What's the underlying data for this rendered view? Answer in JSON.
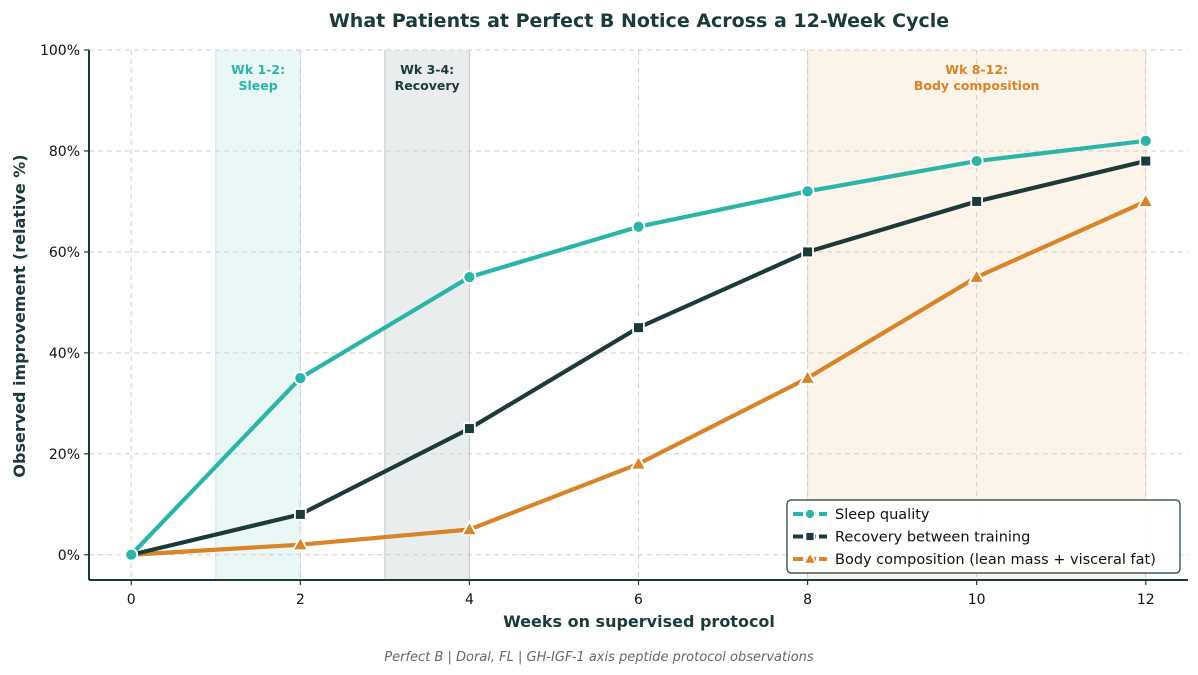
{
  "chart_data": {
    "type": "line",
    "title": "What Patients at Perfect B Notice Across a 12-Week Cycle",
    "xlabel": "Weeks on supervised protocol",
    "ylabel": "Observed improvement (relative %)",
    "xlim": [
      -0.5,
      12.5
    ],
    "ylim": [
      -5,
      100
    ],
    "xticks": [
      0,
      2,
      4,
      6,
      8,
      10,
      12
    ],
    "xtick_labels": [
      "0",
      "2",
      "4",
      "6",
      "8",
      "10",
      "12"
    ],
    "yticks": [
      0,
      20,
      40,
      60,
      80,
      100
    ],
    "ytick_labels": [
      "0%",
      "20%",
      "40%",
      "60%",
      "80%",
      "100%"
    ],
    "grid": true,
    "legend_position": "bottom-right",
    "bands": [
      {
        "x_start": 1,
        "x_end": 2,
        "label_line1": "Wk 1-2:",
        "label_line2": "Sleep",
        "fill": "#2bb5a8",
        "opacity": 0.1,
        "text_color": "#2bb5a8"
      },
      {
        "x_start": 3,
        "x_end": 4,
        "label_line1": "Wk 3-4:",
        "label_line2": "Recovery",
        "fill": "#1b3a3a",
        "opacity": 0.09,
        "text_color": "#1b3a3a"
      },
      {
        "x_start": 8,
        "x_end": 12,
        "label_line1": "Wk 8-12:",
        "label_line2": "Body composition",
        "fill": "#e08a2c",
        "opacity": 0.1,
        "text_color": "#d88428"
      }
    ],
    "series": [
      {
        "name": "Sleep quality",
        "color": "#2bb5a8",
        "marker": "circle",
        "x": [
          0,
          2,
          4,
          6,
          8,
          10,
          12
        ],
        "y": [
          0,
          35,
          55,
          65,
          72,
          78,
          82
        ]
      },
      {
        "name": "Recovery between training",
        "color": "#1b3a3a",
        "marker": "square",
        "x": [
          0,
          2,
          4,
          6,
          8,
          10,
          12
        ],
        "y": [
          0,
          8,
          25,
          45,
          60,
          70,
          78
        ]
      },
      {
        "name": "Body composition (lean mass + visceral fat)",
        "color": "#d88428",
        "marker": "triangle",
        "x": [
          0,
          2,
          4,
          6,
          8,
          10,
          12
        ],
        "y": [
          0,
          2,
          5,
          18,
          35,
          55,
          70
        ]
      }
    ],
    "footer": "Perfect B  |  Doral, FL  |  GH-IGF-1 axis peptide protocol observations"
  }
}
